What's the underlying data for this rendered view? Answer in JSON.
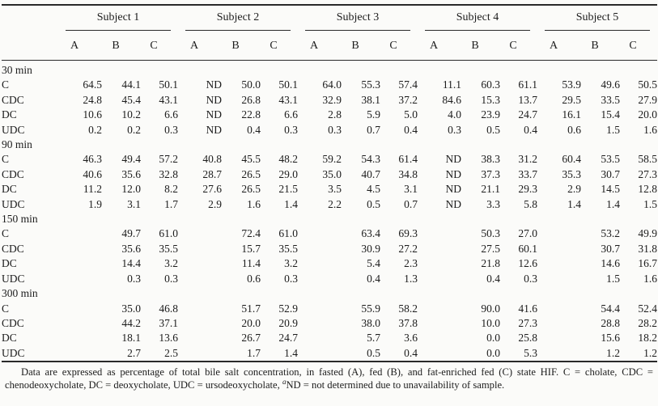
{
  "colors": {
    "background": "#fbfbf9",
    "text": "#1c1c1c",
    "rule": "#2a2a2a"
  },
  "table": {
    "subjects": [
      "Subject 1",
      "Subject 2",
      "Subject 3",
      "Subject 4",
      "Subject 5"
    ],
    "subcolumns": [
      "A",
      "B",
      "C"
    ],
    "sections": [
      {
        "label": "30 min",
        "rows": [
          {
            "label": "C",
            "values": [
              "64.5",
              "44.1",
              "50.1",
              "ND",
              "50.0",
              "50.1",
              "64.0",
              "55.3",
              "57.4",
              "11.1",
              "60.3",
              "61.1",
              "53.9",
              "49.6",
              "50.5"
            ]
          },
          {
            "label": "CDC",
            "values": [
              "24.8",
              "45.4",
              "43.1",
              "ND",
              "26.8",
              "43.1",
              "32.9",
              "38.1",
              "37.2",
              "84.6",
              "15.3",
              "13.7",
              "29.5",
              "33.5",
              "27.9"
            ]
          },
          {
            "label": "DC",
            "values": [
              "10.6",
              "10.2",
              "6.6",
              "ND",
              "22.8",
              "6.6",
              "2.8",
              "5.9",
              "5.0",
              "4.0",
              "23.9",
              "24.7",
              "16.1",
              "15.4",
              "20.0"
            ]
          },
          {
            "label": "UDC",
            "values": [
              "0.2",
              "0.2",
              "0.3",
              "ND",
              "0.4",
              "0.3",
              "0.3",
              "0.7",
              "0.4",
              "0.3",
              "0.5",
              "0.4",
              "0.6",
              "1.5",
              "1.6"
            ]
          }
        ]
      },
      {
        "label": "90 min",
        "rows": [
          {
            "label": "C",
            "values": [
              "46.3",
              "49.4",
              "57.2",
              "40.8",
              "45.5",
              "48.2",
              "59.2",
              "54.3",
              "61.4",
              "ND",
              "38.3",
              "31.2",
              "60.4",
              "53.5",
              "58.5"
            ]
          },
          {
            "label": "CDC",
            "values": [
              "40.6",
              "35.6",
              "32.8",
              "28.7",
              "26.5",
              "29.0",
              "35.0",
              "40.7",
              "34.8",
              "ND",
              "37.3",
              "33.7",
              "35.3",
              "30.7",
              "27.3"
            ]
          },
          {
            "label": "DC",
            "values": [
              "11.2",
              "12.0",
              "8.2",
              "27.6",
              "26.5",
              "21.5",
              "3.5",
              "4.5",
              "3.1",
              "ND",
              "21.1",
              "29.3",
              "2.9",
              "14.5",
              "12.8"
            ]
          },
          {
            "label": "UDC",
            "values": [
              "1.9",
              "3.1",
              "1.7",
              "2.9",
              "1.6",
              "1.4",
              "2.2",
              "0.5",
              "0.7",
              "ND",
              "3.3",
              "5.8",
              "1.4",
              "1.4",
              "1.5"
            ]
          }
        ]
      },
      {
        "label": "150 min",
        "rows": [
          {
            "label": "C",
            "values": [
              "",
              "49.7",
              "61.0",
              "",
              "72.4",
              "61.0",
              "",
              "63.4",
              "69.3",
              "",
              "50.3",
              "27.0",
              "",
              "53.2",
              "49.9"
            ]
          },
          {
            "label": "CDC",
            "values": [
              "",
              "35.6",
              "35.5",
              "",
              "15.7",
              "35.5",
              "",
              "30.9",
              "27.2",
              "",
              "27.5",
              "60.1",
              "",
              "30.7",
              "31.8"
            ]
          },
          {
            "label": "DC",
            "values": [
              "",
              "14.4",
              "3.2",
              "",
              "11.4",
              "3.2",
              "",
              "5.4",
              "2.3",
              "",
              "21.8",
              "12.6",
              "",
              "14.6",
              "16.7"
            ]
          },
          {
            "label": "UDC",
            "values": [
              "",
              "0.3",
              "0.3",
              "",
              "0.6",
              "0.3",
              "",
              "0.4",
              "1.3",
              "",
              "0.4",
              "0.3",
              "",
              "1.5",
              "1.6"
            ]
          }
        ]
      },
      {
        "label": "300 min",
        "rows": [
          {
            "label": "C",
            "values": [
              "",
              "35.0",
              "46.8",
              "",
              "51.7",
              "52.9",
              "",
              "55.9",
              "58.2",
              "",
              "90.0",
              "41.6",
              "",
              "54.4",
              "52.4"
            ]
          },
          {
            "label": "CDC",
            "values": [
              "",
              "44.2",
              "37.1",
              "",
              "20.0",
              "20.9",
              "",
              "38.0",
              "37.8",
              "",
              "10.0",
              "27.3",
              "",
              "28.8",
              "28.2"
            ]
          },
          {
            "label": "DC",
            "values": [
              "",
              "18.1",
              "13.6",
              "",
              "26.7",
              "24.7",
              "",
              "5.7",
              "3.6",
              "",
              "0.0",
              "25.8",
              "",
              "15.6",
              "18.2"
            ]
          },
          {
            "label": "UDC",
            "values": [
              "",
              "2.7",
              "2.5",
              "",
              "1.7",
              "1.4",
              "",
              "0.5",
              "0.4",
              "",
              "0.0",
              "5.3",
              "",
              "1.2",
              "1.2"
            ]
          }
        ]
      }
    ]
  },
  "footnote": {
    "text_before": "Data are expressed as percentage of total bile salt concentration, in fasted (A), fed (B), and fat-enriched fed (C) state HIF. C = cholate, CDC = chenodeoxycholate, DC = deoxycholate, UDC = ursodeoxycholate, ",
    "sup": "a",
    "text_after": "ND = not determined due to unavailability of sample."
  }
}
